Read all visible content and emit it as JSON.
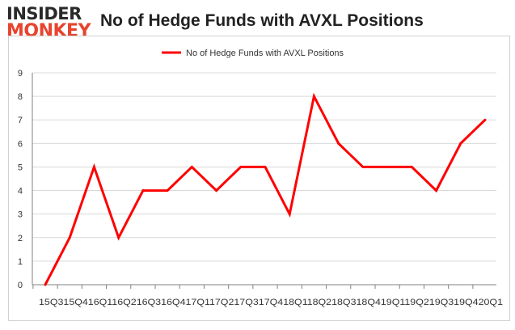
{
  "brand": {
    "line1": "INSIDER",
    "line2": "MONKEY"
  },
  "colors": {
    "series": "#ff0000",
    "brand_dark": "#2a2a2a",
    "brand_red": "#e8432e",
    "grid": "#d9d9d9",
    "axis": "#808080"
  },
  "chart_data": {
    "type": "line",
    "title": "No of Hedge Funds with AVXL Positions",
    "legend_position": "top",
    "grid": true,
    "ylim": [
      0,
      9
    ],
    "yticks": [
      0,
      1,
      2,
      3,
      4,
      5,
      6,
      7,
      8,
      9
    ],
    "categories": [
      "15Q3",
      "15Q4",
      "16Q1",
      "16Q2",
      "16Q3",
      "16Q4",
      "17Q1",
      "17Q2",
      "17Q3",
      "17Q4",
      "18Q1",
      "18Q2",
      "18Q3",
      "18Q4",
      "19Q1",
      "19Q2",
      "19Q3",
      "19Q4",
      "20Q1"
    ],
    "x_label_text": "15Q315Q416Q116Q216Q316Q417Q117Q217Q317Q418Q118Q218Q318Q419Q119Q219Q319Q420Q1",
    "series": [
      {
        "name": "No of Hedge Funds with AVXL Positions",
        "values": [
          0,
          2,
          5,
          2,
          4,
          4,
          5,
          4,
          5,
          5,
          3,
          8,
          6,
          5,
          5,
          5,
          4,
          6,
          7
        ]
      }
    ]
  }
}
